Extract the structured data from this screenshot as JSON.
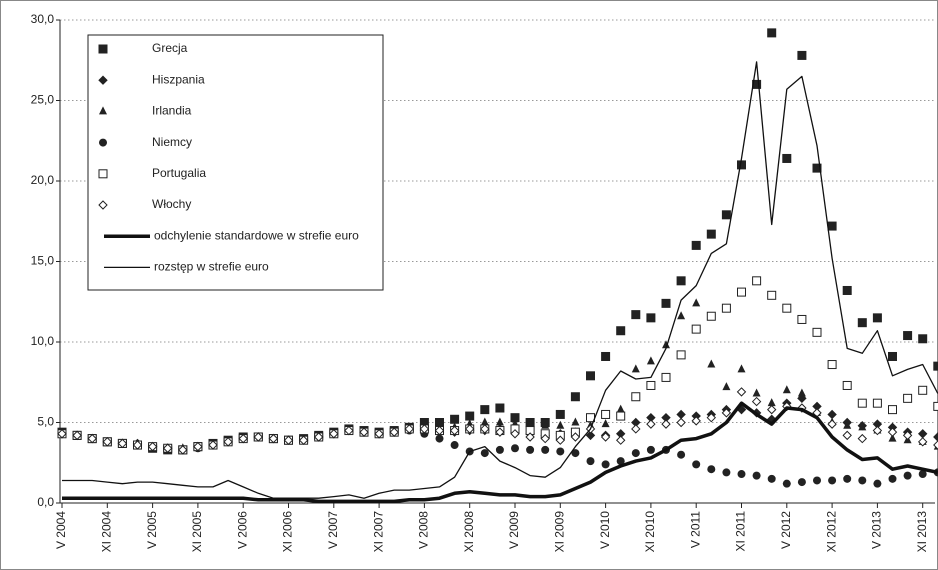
{
  "chart_data": {
    "type": "line",
    "categories": [
      "V 2004",
      null,
      null,
      "XI 2004",
      null,
      null,
      "V 2005",
      null,
      null,
      "XI 2005",
      null,
      null,
      "V 2006",
      null,
      null,
      "XI 2006",
      null,
      null,
      "V 2007",
      null,
      null,
      "XI 2007",
      null,
      null,
      "V 2008",
      null,
      null,
      "XI 2008",
      null,
      null,
      "V 2009",
      null,
      null,
      "XI 2009",
      null,
      null,
      "V 2010",
      null,
      null,
      "XI 2010",
      null,
      null,
      "V 2011",
      null,
      null,
      "XI 2011",
      null,
      null,
      "V 2012",
      null,
      null,
      "XI 2012",
      null,
      null,
      "V 2013",
      null,
      null,
      "XI 2013",
      null
    ],
    "ylim": [
      0,
      30
    ],
    "yticks": [
      {
        "value": 0,
        "label": "0,0"
      },
      {
        "value": 5,
        "label": "5,0"
      },
      {
        "value": 10,
        "label": "10,0"
      },
      {
        "value": 15,
        "label": "15,0"
      },
      {
        "value": 20,
        "label": "20,0"
      },
      {
        "value": 25,
        "label": "25,0"
      },
      {
        "value": 30,
        "label": "30,0"
      }
    ],
    "grid": true,
    "legend": "top-left",
    "series": [
      {
        "name": "Grecja",
        "color": "#222222",
        "marker": "square",
        "values": [
          4.4,
          4.2,
          4.0,
          3.8,
          3.7,
          3.6,
          3.4,
          3.3,
          3.3,
          3.5,
          3.7,
          3.9,
          4.1,
          4.1,
          4.0,
          3.9,
          4.0,
          4.2,
          4.4,
          4.6,
          4.5,
          4.4,
          4.5,
          4.7,
          5.0,
          5.0,
          5.2,
          5.4,
          5.8,
          5.9,
          5.3,
          5.0,
          5.0,
          5.5,
          6.6,
          7.9,
          9.1,
          10.7,
          11.7,
          11.5,
          12.4,
          13.8,
          16.0,
          16.7,
          17.9,
          21.0,
          26.0,
          29.2,
          21.4,
          27.8,
          20.8,
          17.2,
          13.2,
          11.2,
          11.5,
          9.1,
          10.4,
          10.2,
          8.5
        ]
      },
      {
        "name": "Hiszpania",
        "color": "#222222",
        "marker": "diamond",
        "values": [
          4.3,
          4.2,
          4.0,
          3.8,
          3.7,
          3.7,
          3.5,
          3.4,
          3.3,
          3.5,
          3.6,
          3.8,
          4.0,
          4.1,
          4.0,
          3.9,
          3.9,
          4.1,
          4.3,
          4.5,
          4.4,
          4.3,
          4.4,
          4.6,
          4.5,
          4.4,
          4.4,
          4.5,
          4.5,
          4.6,
          4.4,
          4.3,
          4.2,
          4.3,
          4.4,
          4.2,
          4.2,
          4.3,
          5.0,
          5.3,
          5.3,
          5.5,
          5.4,
          5.5,
          5.8,
          5.8,
          5.6,
          5.2,
          6.2,
          6.5,
          6.0,
          5.5,
          5.0,
          4.8,
          4.9,
          4.7,
          4.4,
          4.3,
          4.1
        ]
      },
      {
        "name": "Irlandia",
        "color": "#222222",
        "marker": "triangle",
        "values": [
          4.3,
          4.1,
          4.0,
          3.8,
          3.7,
          3.6,
          3.5,
          3.4,
          3.4,
          3.5,
          3.6,
          3.8,
          4.0,
          4.1,
          4.0,
          3.9,
          3.9,
          4.1,
          4.3,
          4.5,
          4.4,
          4.3,
          4.4,
          4.6,
          4.6,
          4.6,
          4.7,
          4.9,
          5.0,
          5.0,
          4.9,
          4.8,
          4.8,
          4.8,
          5.0,
          4.8,
          4.9,
          5.8,
          8.3,
          8.8,
          9.8,
          11.6,
          12.4,
          8.6,
          7.2,
          8.3,
          6.8,
          6.2,
          7.0,
          6.8,
          5.6,
          5.0,
          4.8,
          4.7,
          4.5,
          4.0,
          3.9,
          3.8,
          3.5
        ]
      },
      {
        "name": "Niemcy",
        "color": "#222222",
        "marker": "circle",
        "values": [
          4.4,
          4.2,
          4.0,
          3.8,
          3.7,
          3.6,
          3.5,
          3.4,
          3.3,
          3.4,
          3.6,
          3.8,
          4.0,
          4.1,
          4.0,
          3.9,
          3.9,
          4.1,
          4.3,
          4.5,
          4.4,
          4.3,
          4.4,
          4.5,
          4.3,
          4.0,
          3.6,
          3.2,
          3.1,
          3.3,
          3.4,
          3.3,
          3.3,
          3.2,
          3.1,
          2.6,
          2.4,
          2.6,
          3.1,
          3.3,
          3.3,
          3.0,
          2.4,
          2.1,
          1.9,
          1.8,
          1.7,
          1.5,
          1.2,
          1.3,
          1.4,
          1.4,
          1.5,
          1.4,
          1.2,
          1.5,
          1.7,
          1.8,
          1.9
        ]
      },
      {
        "name": "Portugalia",
        "color": "#222222",
        "marker": "open-square",
        "values": [
          4.3,
          4.2,
          4.0,
          3.8,
          3.7,
          3.6,
          3.5,
          3.4,
          3.3,
          3.5,
          3.6,
          3.8,
          4.0,
          4.1,
          4.0,
          3.9,
          3.9,
          4.1,
          4.3,
          4.5,
          4.4,
          4.3,
          4.4,
          4.6,
          4.6,
          4.5,
          4.5,
          4.6,
          4.6,
          4.5,
          4.6,
          4.5,
          4.3,
          4.2,
          4.4,
          5.3,
          5.5,
          5.4,
          6.6,
          7.3,
          7.8,
          9.2,
          10.8,
          11.6,
          12.1,
          13.1,
          13.8,
          12.9,
          12.1,
          11.4,
          10.6,
          8.6,
          7.3,
          6.2,
          6.2,
          5.8,
          6.5,
          7.0,
          6.0
        ]
      },
      {
        "name": "Włochy",
        "color": "#222222",
        "marker": "open-diamond",
        "values": [
          4.3,
          4.2,
          4.0,
          3.8,
          3.7,
          3.6,
          3.5,
          3.4,
          3.3,
          3.5,
          3.6,
          3.8,
          4.0,
          4.1,
          4.0,
          3.9,
          3.9,
          4.1,
          4.3,
          4.5,
          4.4,
          4.3,
          4.4,
          4.6,
          4.6,
          4.5,
          4.5,
          4.6,
          4.6,
          4.4,
          4.3,
          4.1,
          4.0,
          3.9,
          4.1,
          4.6,
          4.1,
          3.9,
          4.6,
          4.9,
          4.9,
          5.0,
          5.1,
          5.3,
          5.6,
          6.9,
          6.3,
          5.8,
          6.0,
          5.9,
          5.6,
          4.9,
          4.2,
          4.0,
          4.5,
          4.4,
          4.2,
          3.8,
          3.6
        ]
      },
      {
        "name": "odchylenie standardowe w strefie euro",
        "color": "#111111",
        "line_width": 3.5,
        "values": [
          0.3,
          0.3,
          0.3,
          0.3,
          0.3,
          0.3,
          0.3,
          0.3,
          0.3,
          0.3,
          0.3,
          0.3,
          0.3,
          0.2,
          0.2,
          0.2,
          0.2,
          0.1,
          0.1,
          0.1,
          0.1,
          0.1,
          0.1,
          0.2,
          0.2,
          0.3,
          0.6,
          0.7,
          0.6,
          0.5,
          0.5,
          0.4,
          0.4,
          0.5,
          0.9,
          1.3,
          1.9,
          2.3,
          2.6,
          2.8,
          3.3,
          3.9,
          4.0,
          4.3,
          5.0,
          6.2,
          5.5,
          4.9,
          5.9,
          5.8,
          5.3,
          4.1,
          3.3,
          2.7,
          2.8,
          2.1,
          2.3,
          2.1,
          1.9
        ]
      },
      {
        "name": "rozstęp w strefie euro",
        "color": "#111111",
        "line_width": 1.3,
        "values": [
          1.4,
          1.4,
          1.4,
          1.3,
          1.2,
          1.3,
          1.3,
          1.2,
          1.1,
          1.0,
          1.0,
          1.4,
          1.0,
          0.6,
          0.3,
          0.3,
          0.3,
          0.3,
          0.4,
          0.5,
          0.3,
          0.6,
          0.8,
          0.8,
          0.9,
          1.0,
          1.6,
          3.2,
          3.5,
          2.6,
          2.2,
          1.7,
          1.6,
          2.2,
          3.5,
          4.6,
          7.0,
          8.2,
          7.7,
          7.8,
          9.6,
          12.6,
          13.5,
          15.5,
          16.1,
          21.4,
          27.4,
          17.3,
          25.7,
          26.5,
          22.2,
          15.2,
          9.6,
          9.3,
          10.7,
          7.9,
          8.3,
          8.6,
          6.8
        ]
      }
    ]
  }
}
